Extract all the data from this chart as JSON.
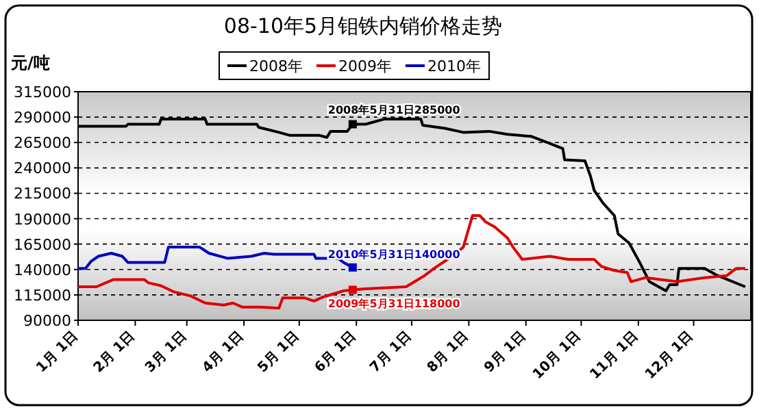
{
  "chart_data": {
    "type": "line",
    "title": "08-10年5月钼铁内销价格走势",
    "ylabel": "元/吨",
    "xlim": [
      "--01-01",
      "--12-31"
    ],
    "xticks": [
      {
        "value": "--01-01",
        "label": "1月 1日"
      },
      {
        "value": "--02-01",
        "label": "2月 1日"
      },
      {
        "value": "--03-01",
        "label": "3月 1日"
      },
      {
        "value": "--04-01",
        "label": "4月 1日"
      },
      {
        "value": "--05-01",
        "label": "5月 1日"
      },
      {
        "value": "--06-01",
        "label": "6月 1日"
      },
      {
        "value": "--07-01",
        "label": "7月 1日"
      },
      {
        "value": "--08-01",
        "label": "8月 1日"
      },
      {
        "value": "--09-01",
        "label": "9月 1日"
      },
      {
        "value": "--10-01",
        "label": "10月 1日"
      },
      {
        "value": "--11-01",
        "label": "11月 1日"
      },
      {
        "value": "--12-01",
        "label": "12月 1日"
      }
    ],
    "ylim": [
      90000,
      315000
    ],
    "yticks": [
      90000,
      115000,
      140000,
      165000,
      190000,
      215000,
      240000,
      265000,
      290000,
      315000
    ],
    "grid": "y",
    "legend": "top",
    "line_style": "solid",
    "series": [
      {
        "name": "2008年",
        "color": "#000000",
        "x": [
          "--01-01",
          "--01-27",
          "--01-28",
          "--02-14",
          "--02-15",
          "--03-11",
          "--03-12",
          "--04-08",
          "--04-09",
          "--04-20",
          "--04-26",
          "--05-12",
          "--05-16",
          "--05-18",
          "--05-27",
          "--05-30",
          "--06-06",
          "--06-16",
          "--07-06",
          "--07-07",
          "--07-19",
          "--07-29",
          "--08-12",
          "--08-22",
          "--09-04",
          "--09-14",
          "--09-21",
          "--09-22",
          "--10-03",
          "--10-06",
          "--10-08",
          "--10-13",
          "--10-19",
          "--10-21",
          "--10-27",
          "--11-02",
          "--11-07",
          "--11-16",
          "--11-18",
          "--11-22",
          "--11-23",
          "--12-07",
          "--12-14",
          "--12-29"
        ],
        "values": [
          281000,
          281000,
          283000,
          283000,
          288000,
          288000,
          283000,
          283000,
          280000,
          275000,
          272000,
          272000,
          270000,
          276000,
          276000,
          283000,
          283000,
          288000,
          288000,
          282000,
          279000,
          275000,
          276000,
          273000,
          271000,
          264000,
          259000,
          248000,
          247000,
          232000,
          218000,
          205000,
          193000,
          175000,
          166000,
          146000,
          128000,
          119000,
          125000,
          125000,
          141000,
          141000,
          134000,
          123000
        ]
      },
      {
        "name": "2009年",
        "color": "#e00000",
        "x": [
          "--01-01",
          "--01-11",
          "--01-20",
          "--02-06",
          "--02-08",
          "--02-15",
          "--02-22",
          "--03-03",
          "--03-11",
          "--03-21",
          "--03-26",
          "--03-31",
          "--04-10",
          "--04-20",
          "--04-22",
          "--05-04",
          "--05-09",
          "--05-14",
          "--05-25",
          "--05-30",
          "--06-06",
          "--06-28",
          "--07-08",
          "--07-13",
          "--07-23",
          "--07-29",
          "--08-03",
          "--08-07",
          "--08-10",
          "--08-15",
          "--08-22",
          "--08-25",
          "--08-30",
          "--09-14",
          "--09-24",
          "--10-08",
          "--10-12",
          "--10-19",
          "--10-26",
          "--10-28",
          "--11-05",
          "--11-22",
          "--12-07",
          "--12-19",
          "--12-24",
          "--12-29"
        ],
        "values": [
          123000,
          123000,
          130000,
          130000,
          127000,
          124000,
          118000,
          114000,
          107000,
          105000,
          107000,
          103000,
          103000,
          102000,
          112000,
          112000,
          109000,
          113000,
          119000,
          120000,
          121000,
          123000,
          134000,
          141000,
          153000,
          162000,
          193000,
          193000,
          187000,
          182000,
          171000,
          162000,
          150000,
          153000,
          150000,
          150000,
          143000,
          139000,
          137000,
          128000,
          132000,
          128000,
          132000,
          134000,
          141000,
          141000
        ]
      },
      {
        "name": "2010年",
        "color": "#0000c0",
        "x": [
          "--01-01",
          "--01-05",
          "--01-08",
          "--01-12",
          "--01-19",
          "--01-25",
          "--01-28",
          "--02-17",
          "--02-19",
          "--03-08",
          "--03-13",
          "--03-23",
          "--04-05",
          "--04-12",
          "--04-17",
          "--05-09",
          "--05-10",
          "--05-22",
          "--05-25",
          "--05-30"
        ],
        "values": [
          141000,
          141000,
          148000,
          153000,
          156000,
          153000,
          147000,
          147000,
          162000,
          162000,
          156000,
          151000,
          153000,
          156000,
          155000,
          155000,
          151000,
          151000,
          147000,
          142000
        ]
      }
    ],
    "annotations": [
      {
        "text": "2008年5月31日285000",
        "x": "--05-30",
        "y": 283000
      },
      {
        "text": "2009年5月31日118000",
        "x": "--05-30",
        "y": 120000
      },
      {
        "text": "2010年5月31日140000",
        "x": "--05-30",
        "y": 142000
      }
    ]
  }
}
